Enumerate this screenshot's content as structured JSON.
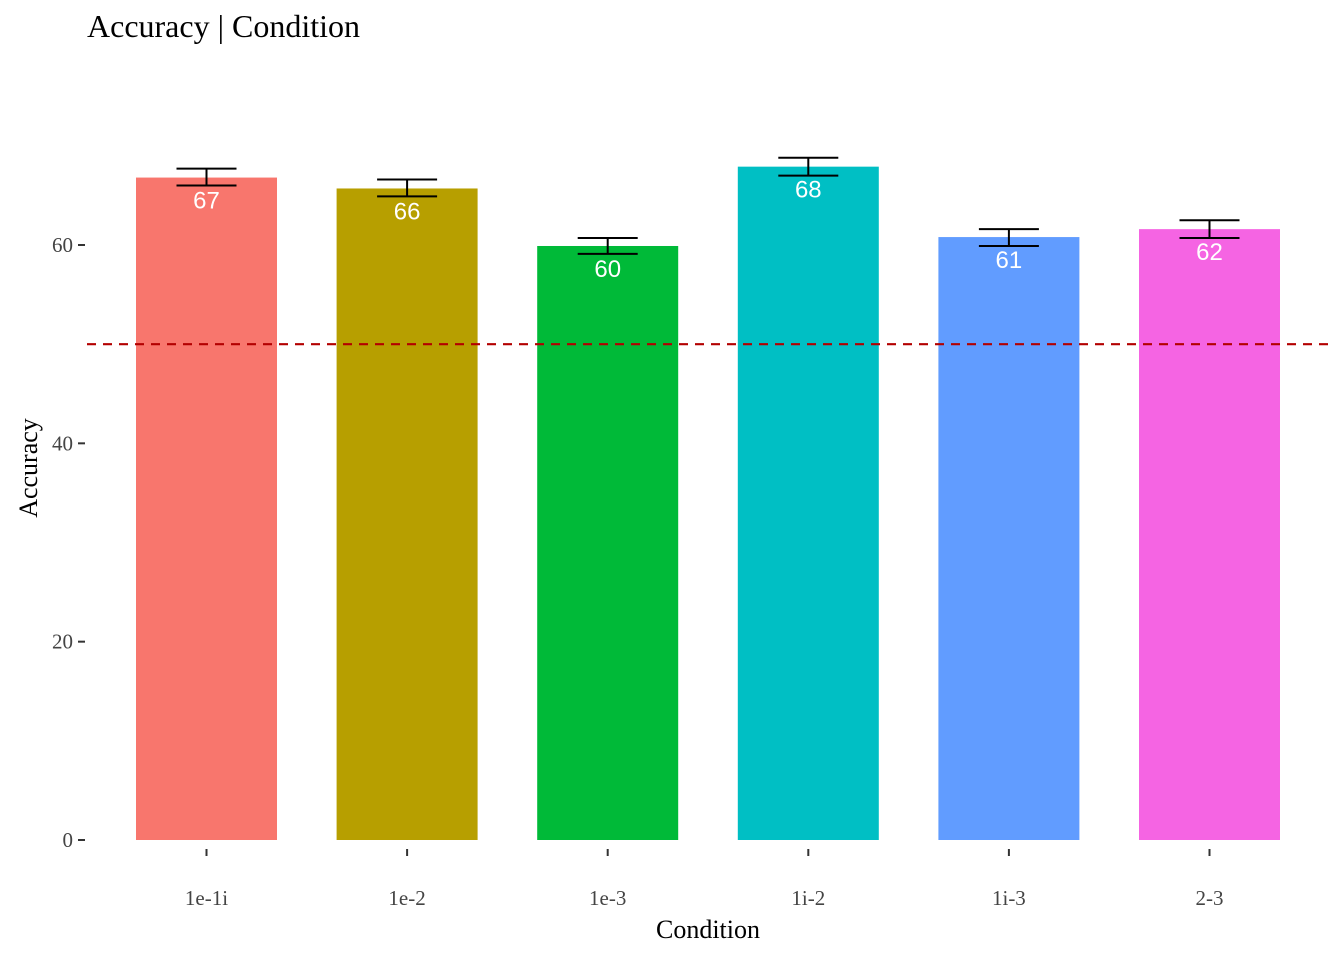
{
  "chart_data": {
    "type": "bar",
    "title": "Accuracy | Condition",
    "xlabel": "Condition",
    "ylabel": "Accuracy",
    "categories": [
      "1e-1i",
      "1e-2",
      "1e-3",
      "1i-2",
      "1i-3",
      "2-3"
    ],
    "values": [
      66.8,
      65.7,
      59.9,
      67.9,
      60.8,
      61.6
    ],
    "value_labels": [
      "67",
      "66",
      "60",
      "68",
      "61",
      "62"
    ],
    "error_bars": [
      {
        "low": 66.0,
        "high": 67.7
      },
      {
        "low": 64.9,
        "high": 66.6
      },
      {
        "low": 59.1,
        "high": 60.7
      },
      {
        "low": 67.0,
        "high": 68.8
      },
      {
        "low": 59.9,
        "high": 61.6
      },
      {
        "low": 60.7,
        "high": 62.5
      }
    ],
    "colors": [
      "#F8766D",
      "#B79F00",
      "#00BA38",
      "#00BFC4",
      "#619CFF",
      "#F564E3"
    ],
    "reference_line": {
      "value": 50,
      "color": "#B30000",
      "style": "dashed"
    },
    "ylim": [
      0,
      70
    ],
    "y_ticks": [
      0,
      20,
      40,
      60
    ],
    "grid": false,
    "legend": "none"
  }
}
